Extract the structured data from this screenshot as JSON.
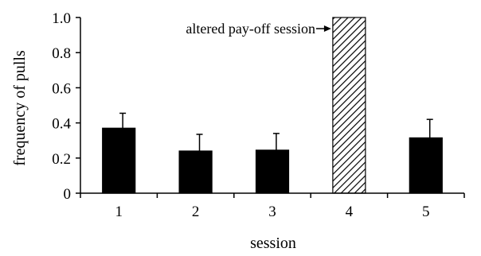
{
  "chart_data": {
    "type": "bar",
    "categories": [
      "1",
      "2",
      "3",
      "4",
      "5"
    ],
    "values": [
      0.37,
      0.24,
      0.245,
      1.0,
      0.315
    ],
    "error_upper": [
      0.455,
      0.335,
      0.34,
      null,
      0.42
    ],
    "xlabel": "session",
    "ylabel": "frequency of pulls",
    "ylim": [
      0,
      1.0
    ],
    "yticks": [
      0,
      0.2,
      0.4,
      0.6,
      0.8,
      1.0
    ],
    "ytick_labels": [
      "0",
      "0.2",
      "0.4",
      "0.6",
      "0.8",
      "1.0"
    ],
    "bar_styles": [
      "solid",
      "solid",
      "solid",
      "hatched",
      "solid"
    ],
    "grid": false,
    "annotation": {
      "text": "altered pay-off session",
      "target_category": "4"
    },
    "colors": {
      "bar": "#000000",
      "hatch": "#000000",
      "background": "#ffffff"
    }
  }
}
